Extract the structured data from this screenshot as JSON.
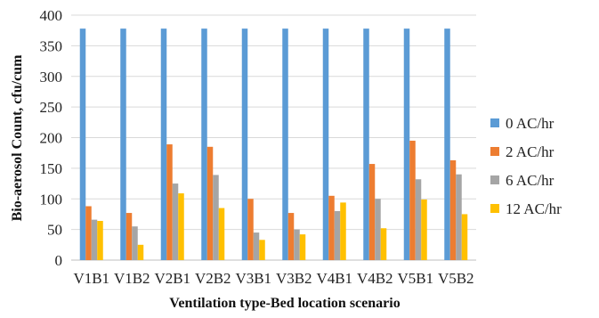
{
  "chart_data": {
    "type": "bar",
    "title": "",
    "xlabel": "Ventilation type-Bed location scenario",
    "ylabel": "Bio-aerosol Count, cfu/cum",
    "ylim": [
      0,
      400
    ],
    "yticks": [
      0,
      50,
      100,
      150,
      200,
      250,
      300,
      350,
      400
    ],
    "grid": true,
    "legend_position": "right",
    "categories": [
      "V1B1",
      "V1B2",
      "V2B1",
      "V2B2",
      "V3B1",
      "V3B2",
      "V4B1",
      "V4B2",
      "V5B1",
      "V5B2"
    ],
    "series": [
      {
        "name": "0 AC/hr",
        "color": "#5B9BD5",
        "values": [
          378,
          378,
          378,
          378,
          378,
          378,
          378,
          378,
          378,
          378
        ]
      },
      {
        "name": "2 AC/hr",
        "color": "#ED7D31",
        "values": [
          88,
          77,
          189,
          185,
          100,
          77,
          105,
          157,
          195,
          163
        ]
      },
      {
        "name": "6 AC/hr",
        "color": "#A5A5A5",
        "values": [
          66,
          55,
          125,
          139,
          45,
          50,
          80,
          100,
          132,
          140
        ]
      },
      {
        "name": "12 AC/hr",
        "color": "#FFC000",
        "values": [
          64,
          25,
          109,
          85,
          33,
          42,
          94,
          52,
          99,
          75
        ]
      }
    ]
  }
}
